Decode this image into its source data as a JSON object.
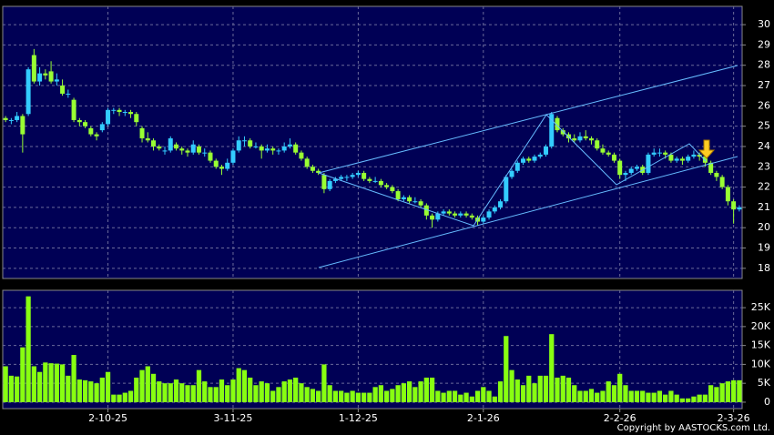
{
  "chart_data": [
    {
      "type": "candlestick",
      "categories": [
        null,
        null,
        null,
        null,
        null,
        null,
        null,
        null,
        null,
        null,
        null,
        null,
        null,
        null,
        null,
        null,
        null,
        null,
        "2-10-25",
        null,
        null,
        null,
        null,
        null,
        null,
        null,
        null,
        null,
        null,
        null,
        null,
        null,
        null,
        null,
        null,
        null,
        null,
        null,
        null,
        null,
        "3-11-25",
        null,
        null,
        null,
        null,
        null,
        null,
        null,
        null,
        null,
        null,
        null,
        null,
        null,
        null,
        null,
        null,
        null,
        null,
        null,
        null,
        null,
        "1-12-25",
        null,
        null,
        null,
        null,
        null,
        null,
        null,
        null,
        null,
        null,
        null,
        null,
        null,
        null,
        null,
        null,
        null,
        null,
        null,
        null,
        null,
        "2-1-26",
        null,
        null,
        null,
        null,
        null,
        null,
        null,
        null,
        null,
        null,
        null,
        null,
        null,
        null,
        null,
        null,
        null,
        null,
        null,
        null,
        null,
        null,
        null,
        "2-2-26",
        null,
        null,
        null,
        null,
        null,
        null,
        null,
        null,
        null,
        null,
        null,
        null,
        null,
        null,
        null,
        null,
        null,
        null,
        null,
        "2-3-26",
        null
      ],
      "ohlc": [
        [
          25.4,
          25.5,
          25.2,
          25.3
        ],
        [
          25.3,
          25.4,
          25.1,
          25.3
        ],
        [
          25.3,
          25.7,
          25.2,
          25.5
        ],
        [
          25.5,
          25.6,
          23.7,
          24.6
        ],
        [
          25.6,
          27.9,
          25.5,
          27.8
        ],
        [
          28.5,
          28.8,
          27.1,
          27.2
        ],
        [
          27.2,
          27.9,
          27.0,
          27.6
        ],
        [
          27.6,
          27.8,
          27.3,
          27.5
        ],
        [
          27.7,
          28.2,
          27.1,
          27.2
        ],
        [
          27.2,
          27.6,
          27.0,
          27.3
        ],
        [
          27.0,
          27.3,
          26.5,
          26.6
        ],
        [
          26.6,
          26.8,
          26.4,
          26.6
        ],
        [
          26.3,
          26.4,
          25.2,
          25.3
        ],
        [
          25.3,
          25.4,
          25.0,
          25.2
        ],
        [
          25.2,
          25.3,
          24.9,
          25.0
        ],
        [
          24.9,
          25.0,
          24.5,
          24.6
        ],
        [
          24.6,
          24.7,
          24.3,
          24.5
        ],
        [
          24.8,
          25.2,
          24.7,
          25.1
        ],
        [
          25.1,
          25.9,
          25.0,
          25.8
        ],
        [
          25.8,
          25.9,
          25.6,
          25.8
        ],
        [
          25.8,
          25.9,
          25.5,
          25.7
        ],
        [
          25.7,
          25.8,
          25.5,
          25.7
        ],
        [
          25.7,
          25.8,
          25.4,
          25.6
        ],
        [
          25.6,
          25.7,
          25.0,
          25.2
        ],
        [
          24.9,
          25.0,
          24.2,
          24.4
        ],
        [
          24.4,
          24.7,
          24.2,
          24.3
        ],
        [
          24.3,
          24.4,
          23.8,
          24.0
        ],
        [
          24.0,
          24.1,
          23.8,
          23.9
        ],
        [
          23.8,
          24.0,
          23.6,
          23.8
        ],
        [
          23.8,
          24.5,
          23.7,
          24.4
        ],
        [
          24.1,
          24.2,
          23.8,
          23.9
        ],
        [
          23.9,
          24.0,
          23.6,
          23.8
        ],
        [
          23.8,
          23.9,
          23.5,
          23.7
        ],
        [
          23.7,
          24.3,
          23.6,
          24.1
        ],
        [
          24.0,
          24.1,
          23.6,
          23.7
        ],
        [
          23.7,
          23.9,
          23.5,
          23.7
        ],
        [
          23.7,
          23.8,
          23.2,
          23.3
        ],
        [
          23.3,
          23.4,
          22.9,
          23.0
        ],
        [
          23.0,
          23.1,
          22.6,
          22.9
        ],
        [
          22.9,
          23.4,
          22.8,
          23.2
        ],
        [
          23.2,
          23.9,
          23.1,
          23.8
        ],
        [
          23.8,
          24.5,
          23.7,
          24.3
        ],
        [
          24.3,
          24.5,
          24.0,
          24.3
        ],
        [
          24.3,
          24.4,
          23.9,
          24.0
        ],
        [
          24.0,
          24.2,
          23.9,
          24.0
        ],
        [
          24.0,
          24.1,
          23.4,
          23.8
        ],
        [
          23.8,
          24.1,
          23.7,
          23.9
        ],
        [
          23.9,
          24.0,
          23.6,
          23.8
        ],
        [
          23.8,
          23.9,
          23.6,
          23.8
        ],
        [
          23.8,
          24.2,
          23.7,
          24.0
        ],
        [
          24.0,
          24.4,
          23.9,
          24.1
        ],
        [
          24.1,
          24.2,
          23.6,
          23.7
        ],
        [
          23.7,
          23.8,
          23.3,
          23.4
        ],
        [
          23.4,
          23.5,
          22.9,
          23.0
        ],
        [
          23.0,
          23.1,
          22.7,
          22.8
        ],
        [
          22.8,
          22.9,
          22.6,
          22.7
        ],
        [
          22.6,
          22.7,
          21.7,
          21.9
        ],
        [
          21.9,
          22.4,
          21.8,
          22.3
        ],
        [
          22.3,
          22.5,
          22.2,
          22.4
        ],
        [
          22.4,
          22.6,
          22.3,
          22.5
        ],
        [
          22.5,
          22.6,
          22.3,
          22.5
        ],
        [
          22.5,
          22.7,
          22.4,
          22.6
        ],
        [
          22.6,
          22.8,
          22.5,
          22.7
        ],
        [
          22.7,
          22.8,
          22.3,
          22.4
        ],
        [
          22.4,
          22.5,
          22.2,
          22.3
        ],
        [
          22.3,
          22.5,
          22.2,
          22.3
        ],
        [
          22.3,
          22.4,
          22.0,
          22.1
        ],
        [
          22.1,
          22.2,
          21.9,
          22.0
        ],
        [
          22.0,
          22.1,
          21.7,
          21.8
        ],
        [
          21.8,
          21.9,
          21.3,
          21.4
        ],
        [
          21.4,
          21.6,
          21.3,
          21.5
        ],
        [
          21.5,
          21.6,
          21.2,
          21.3
        ],
        [
          21.3,
          21.5,
          21.2,
          21.3
        ],
        [
          21.3,
          21.4,
          21.0,
          21.1
        ],
        [
          21.1,
          21.2,
          20.4,
          20.6
        ],
        [
          20.6,
          20.7,
          20.0,
          20.4
        ],
        [
          20.4,
          20.8,
          20.3,
          20.7
        ],
        [
          20.7,
          20.9,
          20.6,
          20.8
        ],
        [
          20.8,
          20.9,
          20.6,
          20.7
        ],
        [
          20.7,
          20.8,
          20.5,
          20.6
        ],
        [
          20.6,
          20.8,
          20.5,
          20.7
        ],
        [
          20.7,
          20.8,
          20.5,
          20.6
        ],
        [
          20.6,
          20.7,
          20.4,
          20.5
        ],
        [
          20.5,
          20.6,
          20.1,
          20.3
        ],
        [
          20.3,
          20.6,
          20.2,
          20.5
        ],
        [
          20.5,
          20.9,
          20.4,
          20.8
        ],
        [
          20.8,
          21.1,
          20.7,
          21.0
        ],
        [
          21.0,
          21.4,
          20.9,
          21.3
        ],
        [
          21.3,
          22.6,
          21.2,
          22.5
        ],
        [
          22.5,
          22.9,
          22.4,
          22.8
        ],
        [
          22.8,
          23.3,
          22.7,
          23.2
        ],
        [
          23.2,
          23.5,
          23.1,
          23.4
        ],
        [
          23.4,
          23.5,
          23.2,
          23.3
        ],
        [
          23.3,
          23.6,
          23.2,
          23.5
        ],
        [
          23.5,
          23.7,
          23.4,
          23.6
        ],
        [
          23.6,
          24.1,
          23.5,
          24.0
        ],
        [
          24.0,
          25.7,
          23.9,
          25.6
        ],
        [
          25.4,
          25.5,
          24.7,
          24.8
        ],
        [
          24.8,
          24.9,
          24.5,
          24.6
        ],
        [
          24.6,
          24.7,
          24.2,
          24.4
        ],
        [
          24.4,
          24.6,
          24.2,
          24.3
        ],
        [
          24.3,
          24.7,
          24.2,
          24.5
        ],
        [
          24.5,
          24.8,
          24.3,
          24.4
        ],
        [
          24.4,
          24.5,
          24.1,
          24.3
        ],
        [
          24.3,
          24.4,
          23.8,
          23.9
        ],
        [
          23.9,
          24.1,
          23.6,
          23.7
        ],
        [
          23.7,
          23.8,
          23.5,
          23.6
        ],
        [
          23.6,
          23.7,
          23.2,
          23.3
        ],
        [
          23.3,
          23.4,
          22.4,
          22.6
        ],
        [
          22.6,
          22.8,
          22.3,
          22.7
        ],
        [
          22.7,
          23.0,
          22.6,
          22.9
        ],
        [
          22.9,
          23.1,
          22.8,
          23.0
        ],
        [
          23.0,
          23.1,
          22.6,
          22.7
        ],
        [
          22.7,
          23.7,
          22.6,
          23.6
        ],
        [
          23.6,
          23.9,
          23.5,
          23.7
        ],
        [
          23.7,
          23.9,
          23.5,
          23.7
        ],
        [
          23.7,
          23.8,
          23.4,
          23.6
        ],
        [
          23.6,
          23.7,
          23.2,
          23.3
        ],
        [
          23.3,
          23.5,
          23.2,
          23.4
        ],
        [
          23.4,
          23.5,
          23.1,
          23.3
        ],
        [
          23.3,
          23.6,
          23.2,
          23.5
        ],
        [
          23.5,
          23.8,
          23.4,
          23.6
        ],
        [
          23.6,
          23.7,
          23.3,
          23.5
        ],
        [
          23.5,
          23.6,
          23.0,
          23.2
        ],
        [
          23.2,
          23.3,
          22.6,
          22.7
        ],
        [
          22.7,
          22.8,
          22.3,
          22.5
        ],
        [
          22.5,
          22.6,
          21.9,
          22.0
        ],
        [
          22.0,
          22.1,
          21.1,
          21.3
        ],
        [
          21.3,
          21.4,
          20.2,
          20.9
        ],
        [
          20.9,
          21.1,
          20.8,
          21.0
        ]
      ],
      "up_color": "#33ccff",
      "down_color": "#99ff33",
      "ylim": [
        17.5,
        30.9
      ],
      "yticks": [
        18,
        19,
        20,
        21,
        22,
        23,
        24,
        25,
        26,
        27,
        28,
        29,
        30
      ],
      "grid": true
    },
    {
      "type": "bar",
      "color": "#88ff11",
      "values": [
        9500,
        7000,
        6800,
        14500,
        28000,
        9500,
        8000,
        10500,
        10300,
        10200,
        10000,
        7000,
        12500,
        6000,
        5800,
        5500,
        5000,
        6500,
        8000,
        2000,
        2000,
        2500,
        3000,
        6500,
        8500,
        9500,
        7500,
        5500,
        5000,
        5000,
        6000,
        5000,
        4500,
        4500,
        8500,
        5500,
        4000,
        4000,
        6000,
        4500,
        6000,
        9000,
        8500,
        6500,
        4500,
        5500,
        5000,
        3000,
        4000,
        5500,
        6000,
        6500,
        5000,
        4000,
        3500,
        3000,
        10000,
        4500,
        3000,
        3000,
        2500,
        3000,
        2500,
        2500,
        2500,
        4000,
        4500,
        3000,
        3500,
        4500,
        5000,
        5500,
        4000,
        5500,
        6500,
        6500,
        3000,
        2500,
        3000,
        3000,
        2000,
        2500,
        1500,
        3000,
        4000,
        3000,
        1500,
        5500,
        17500,
        8500,
        6000,
        4500,
        7000,
        5000,
        7000,
        7000,
        18000,
        6500,
        7000,
        6500,
        4500,
        3000,
        3000,
        3500,
        2500,
        3000,
        5500,
        4500,
        7500,
        4500,
        3000,
        3000,
        3000,
        2500,
        2500,
        3000,
        2000,
        3000,
        2000,
        1000,
        1000,
        1500,
        2000,
        2000,
        4500,
        4000,
        5000,
        5500,
        5800,
        5800
      ],
      "ylim": [
        -1700,
        29600
      ],
      "yticks": [
        0,
        {
          "value": 5000,
          "label": "5K"
        },
        {
          "value": 10000,
          "label": "10K"
        },
        {
          "value": 15000,
          "label": "15K"
        },
        {
          "value": 20000,
          "label": "20K"
        },
        {
          "value": 25000,
          "label": "25K"
        }
      ],
      "grid": true
    }
  ],
  "copyright": "Copyright by AASTOCKS.com Ltd."
}
